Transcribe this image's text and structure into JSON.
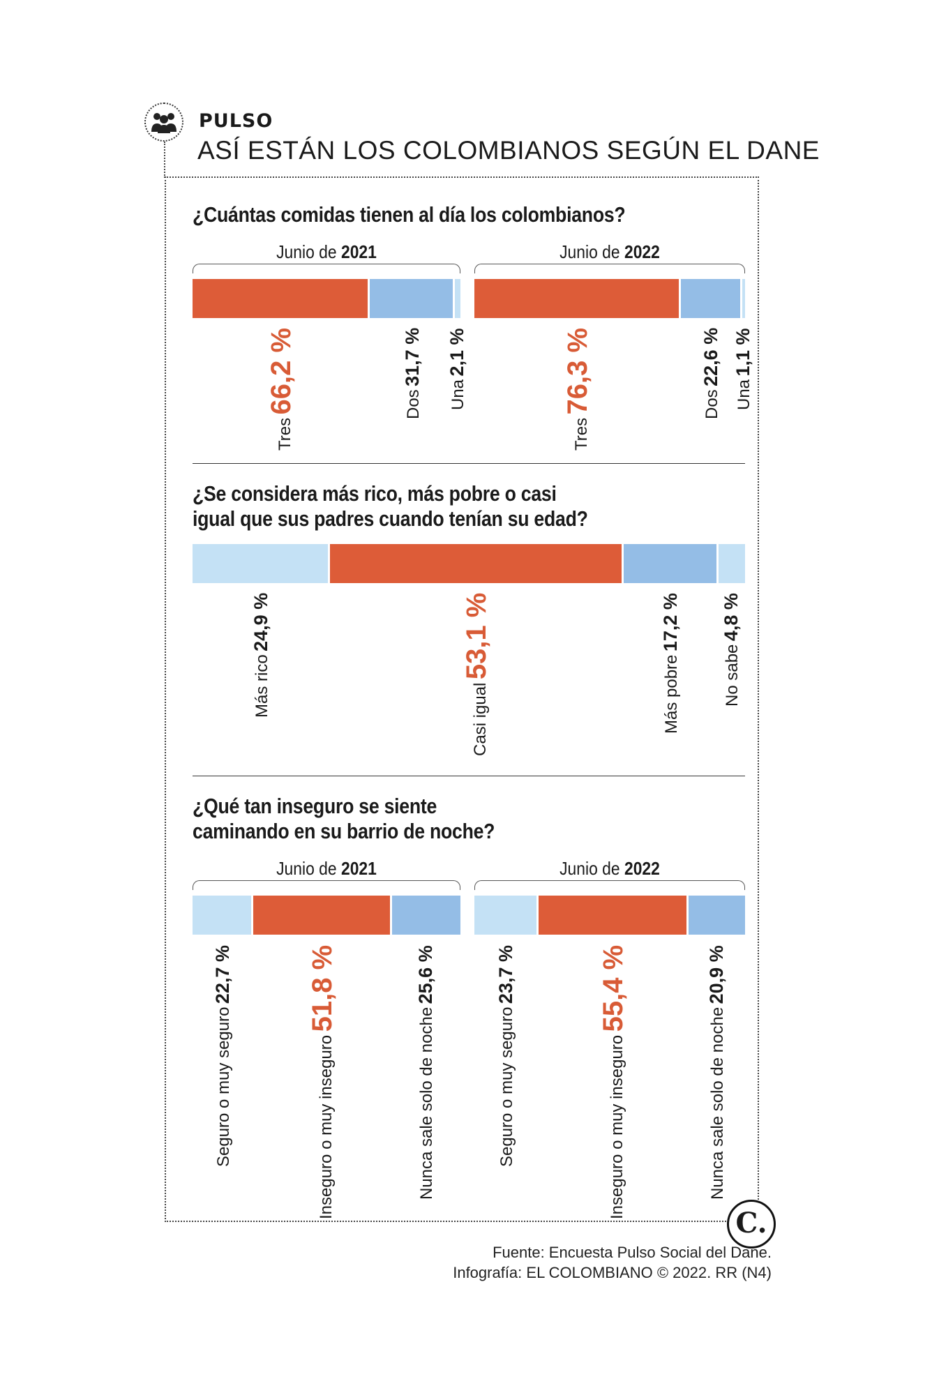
{
  "header": {
    "kicker": "PULSO",
    "headline": "ASÍ ESTÁN LOS COLOMBIANOS SEGÚN EL DANE",
    "icon": "people-group-icon"
  },
  "colors": {
    "accent": "#dd5c38",
    "light_blue": "#c4e1f5",
    "mid_blue": "#94bde6"
  },
  "chart_data": [
    {
      "type": "bar",
      "title": "¿Cuántas comidas tienen al día los colombianos?",
      "stacked": true,
      "groups": [
        {
          "label_prefix": "Junio de",
          "label_year": "2021",
          "segments": [
            {
              "category": "Tres",
              "value": 66.2,
              "value_text": "66,2 %",
              "highlight": true
            },
            {
              "category": "Dos",
              "value": 31.7,
              "value_text": "31,7 %",
              "highlight": false
            },
            {
              "category": "Una",
              "value": 2.1,
              "value_text": "2,1 %",
              "highlight": false
            }
          ]
        },
        {
          "label_prefix": "Junio de",
          "label_year": "2022",
          "segments": [
            {
              "category": "Tres",
              "value": 76.3,
              "value_text": "76,3 %",
              "highlight": true
            },
            {
              "category": "Dos",
              "value": 22.6,
              "value_text": "22,6 %",
              "highlight": false
            },
            {
              "category": "Una",
              "value": 1.1,
              "value_text": "1,1 %",
              "highlight": false
            }
          ]
        }
      ]
    },
    {
      "type": "bar",
      "title_line1": "¿Se considera más rico, más pobre o casi",
      "title_line2": "igual que sus padres cuando tenían su edad?",
      "stacked": true,
      "groups": [
        {
          "segments": [
            {
              "category": "Más rico",
              "value": 24.9,
              "value_text": "24,9 %",
              "highlight": false
            },
            {
              "category": "Casi igual",
              "value": 53.1,
              "value_text": "53,1 %",
              "highlight": true
            },
            {
              "category": "Más pobre",
              "value": 17.2,
              "value_text": "17,2 %",
              "highlight": false
            },
            {
              "category": "No sabe",
              "value": 4.8,
              "value_text": "4,8 %",
              "highlight": false
            }
          ]
        }
      ]
    },
    {
      "type": "bar",
      "title_line1": "¿Qué tan inseguro se siente",
      "title_line2": "caminando en su barrio de noche?",
      "stacked": true,
      "groups": [
        {
          "label_prefix": "Junio de",
          "label_year": "2021",
          "segments": [
            {
              "category": "Seguro o muy seguro",
              "value": 22.7,
              "value_text": "22,7 %",
              "highlight": false
            },
            {
              "category": "Inseguro o muy inseguro",
              "value": 51.8,
              "value_text": "51,8 %",
              "highlight": true
            },
            {
              "category": "Nunca sale solo de noche",
              "value": 25.6,
              "value_text": "25,6 %",
              "highlight": false
            }
          ]
        },
        {
          "label_prefix": "Junio de",
          "label_year": "2022",
          "segments": [
            {
              "category": "Seguro o muy seguro",
              "value": 23.7,
              "value_text": "23,7 %",
              "highlight": false
            },
            {
              "category": "Inseguro o muy inseguro",
              "value": 55.4,
              "value_text": "55,4 %",
              "highlight": true
            },
            {
              "category": "Nunca sale solo de noche",
              "value": 20.9,
              "value_text": "20,9 %",
              "highlight": false
            }
          ]
        }
      ]
    }
  ],
  "footer": {
    "source": "Fuente: Encuesta Pulso Social del Dane.",
    "credit": "Infografía: EL COLOMBIANO © 2022. RR (N4)",
    "logo_text": "C."
  }
}
